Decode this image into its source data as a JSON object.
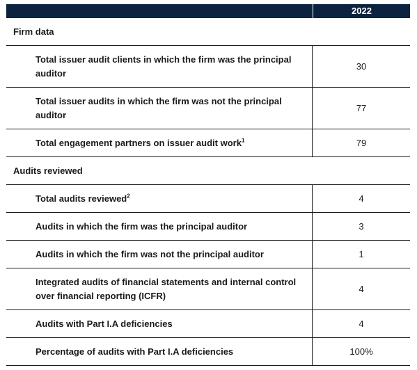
{
  "header": {
    "year": "2022"
  },
  "sections": [
    {
      "title": "Firm data",
      "rows": [
        {
          "label": "Total issuer audit clients in which the firm was the principal auditor",
          "sup": "",
          "value": "30"
        },
        {
          "label": "Total issuer audits in which the firm was not the principal auditor",
          "sup": "",
          "value": "77"
        },
        {
          "label": "Total engagement partners on issuer audit work",
          "sup": "1",
          "value": "79"
        }
      ]
    },
    {
      "title": "Audits reviewed",
      "rows": [
        {
          "label": "Total audits reviewed",
          "sup": "2",
          "value": "4"
        },
        {
          "label": "Audits in which the firm was the principal auditor",
          "sup": "",
          "value": "3"
        },
        {
          "label": "Audits in which the firm was not the principal auditor",
          "sup": "",
          "value": "1"
        },
        {
          "label": "Integrated audits of financial statements and internal control over financial reporting (ICFR)",
          "sup": "",
          "value": "4"
        },
        {
          "label": "Audits with Part I.A deficiencies",
          "sup": "",
          "value": "4"
        },
        {
          "label": "Percentage of audits with Part I.A deficiencies",
          "sup": "",
          "value": "100%"
        }
      ]
    }
  ]
}
